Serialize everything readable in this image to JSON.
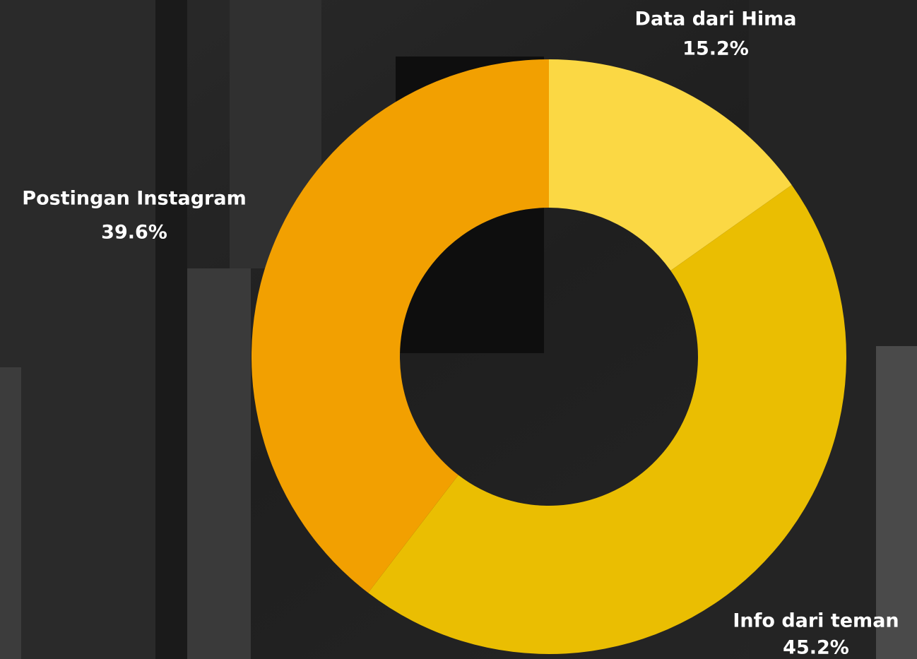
{
  "chart_data": {
    "type": "donut",
    "categories": [
      "Data dari Hima",
      "Info dari teman",
      "Postingan Instagram"
    ],
    "values": [
      15.2,
      45.2,
      39.6
    ],
    "value_labels": [
      "15.2%",
      "45.2%",
      "39.6%"
    ],
    "colors": [
      "#fbd844",
      "#eabe02",
      "#f2a001"
    ]
  }
}
